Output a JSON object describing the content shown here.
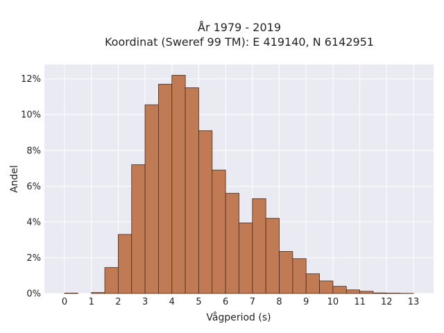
{
  "chart_data": {
    "type": "bar",
    "title_line1": "År 1979 - 2019",
    "title_line2": "Koordinat (Sweref 99 TM): E 419140, N 6142951",
    "xlabel": "Vågperiod (s)",
    "ylabel": "Andel",
    "bin_width": 0.5,
    "bin_starts": [
      0,
      0.5,
      1,
      1.5,
      2,
      2.5,
      3,
      3.5,
      4,
      4.5,
      5,
      5.5,
      6,
      6.5,
      7,
      7.5,
      8,
      8.5,
      9,
      9.5,
      10,
      10.5,
      11,
      11.5,
      12,
      12.5
    ],
    "values": [
      0.02,
      0,
      0.05,
      1.45,
      3.3,
      7.2,
      10.55,
      11.7,
      12.2,
      11.5,
      9.1,
      6.9,
      5.6,
      3.95,
      5.3,
      4.2,
      2.35,
      1.95,
      1.1,
      0.7,
      0.4,
      0.2,
      0.12,
      0.03,
      0.02,
      0.01
    ],
    "xlim": [
      -0.75,
      13.75
    ],
    "ylim": [
      0,
      12.8
    ],
    "xticks": [
      0,
      1,
      2,
      3,
      4,
      5,
      6,
      7,
      8,
      9,
      10,
      11,
      12,
      13
    ],
    "xtick_labels": [
      "0",
      "1",
      "2",
      "3",
      "4",
      "5",
      "6",
      "7",
      "8",
      "9",
      "10",
      "11",
      "12",
      "13"
    ],
    "yticks": [
      0,
      2,
      4,
      6,
      8,
      10,
      12
    ],
    "ytick_labels": [
      "0%",
      "2%",
      "4%",
      "6%",
      "8%",
      "10%",
      "12%"
    ],
    "grid": true,
    "colors": {
      "bar_fill": "#c07a54",
      "bar_edge": "#4a2a1a",
      "plot_bg": "#eaeaf2",
      "grid": "#ffffff"
    }
  }
}
